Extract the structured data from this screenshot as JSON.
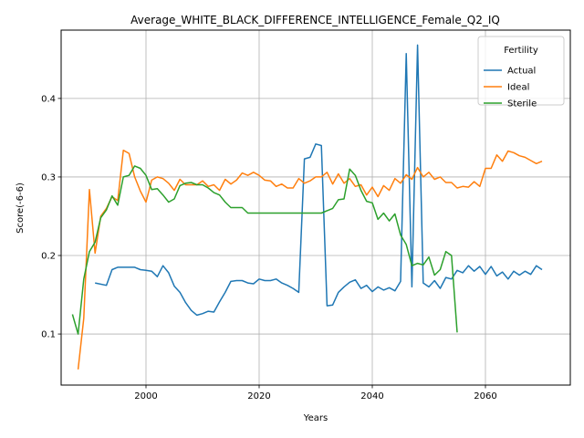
{
  "chart_data": {
    "type": "line",
    "title": "Average_WHITE_BLACK_DIFFERENCE_INTELLIGENCE_Female_Q2_IQ",
    "xlabel": "Years",
    "ylabel": "Score(-6-6)",
    "xlim": [
      1985,
      2075
    ],
    "ylim": [
      0.035,
      0.487
    ],
    "x_ticks": [
      2000,
      2020,
      2040,
      2060
    ],
    "y_ticks": [
      0.1,
      0.2,
      0.3,
      0.4
    ],
    "x_tick_labels": [
      "2000",
      "2020",
      "2040",
      "2060"
    ],
    "y_tick_labels": [
      "0.1",
      "0.2",
      "0.3",
      "0.4"
    ],
    "grid": true,
    "legend": {
      "title": "Fertility",
      "placement": "top-right"
    },
    "series": [
      {
        "name": "Actual",
        "color": "#1f77b4",
        "points": [
          [
            1991,
            0.165
          ],
          [
            1993,
            0.162
          ],
          [
            1994,
            0.182
          ],
          [
            1995,
            0.185
          ],
          [
            1996,
            0.185
          ],
          [
            1997,
            0.185
          ],
          [
            1998,
            0.185
          ],
          [
            1999,
            0.182
          ],
          [
            2000,
            0.181
          ],
          [
            2001,
            0.18
          ],
          [
            2002,
            0.173
          ],
          [
            2003,
            0.187
          ],
          [
            2004,
            0.178
          ],
          [
            2005,
            0.161
          ],
          [
            2006,
            0.153
          ],
          [
            2007,
            0.14
          ],
          [
            2008,
            0.13
          ],
          [
            2009,
            0.124
          ],
          [
            2010,
            0.126
          ],
          [
            2011,
            0.129
          ],
          [
            2012,
            0.128
          ],
          [
            2013,
            0.141
          ],
          [
            2014,
            0.153
          ],
          [
            2015,
            0.167
          ],
          [
            2016,
            0.168
          ],
          [
            2017,
            0.168
          ],
          [
            2018,
            0.165
          ],
          [
            2019,
            0.164
          ],
          [
            2020,
            0.17
          ],
          [
            2021,
            0.168
          ],
          [
            2022,
            0.168
          ],
          [
            2023,
            0.17
          ],
          [
            2024,
            0.165
          ],
          [
            2025,
            0.162
          ],
          [
            2026,
            0.158
          ],
          [
            2027,
            0.153
          ],
          [
            2028,
            0.323
          ],
          [
            2029,
            0.325
          ],
          [
            2030,
            0.342
          ],
          [
            2031,
            0.34
          ],
          [
            2032,
            0.136
          ],
          [
            2033,
            0.137
          ],
          [
            2034,
            0.153
          ],
          [
            2035,
            0.16
          ],
          [
            2036,
            0.166
          ],
          [
            2037,
            0.169
          ],
          [
            2038,
            0.158
          ],
          [
            2039,
            0.162
          ],
          [
            2040,
            0.154
          ],
          [
            2041,
            0.16
          ],
          [
            2042,
            0.156
          ],
          [
            2043,
            0.159
          ],
          [
            2044,
            0.155
          ],
          [
            2045,
            0.167
          ],
          [
            2046,
            0.457
          ],
          [
            2047,
            0.16
          ],
          [
            2048,
            0.468
          ],
          [
            2049,
            0.165
          ],
          [
            2050,
            0.16
          ],
          [
            2051,
            0.168
          ],
          [
            2052,
            0.158
          ],
          [
            2053,
            0.172
          ],
          [
            2054,
            0.17
          ],
          [
            2055,
            0.181
          ],
          [
            2056,
            0.178
          ],
          [
            2057,
            0.187
          ],
          [
            2058,
            0.18
          ],
          [
            2059,
            0.186
          ],
          [
            2060,
            0.176
          ],
          [
            2061,
            0.186
          ],
          [
            2062,
            0.174
          ],
          [
            2063,
            0.179
          ],
          [
            2064,
            0.17
          ],
          [
            2065,
            0.18
          ],
          [
            2066,
            0.175
          ],
          [
            2067,
            0.18
          ],
          [
            2068,
            0.176
          ],
          [
            2069,
            0.187
          ],
          [
            2070,
            0.182
          ]
        ]
      },
      {
        "name": "Ideal",
        "color": "#ff7f0e",
        "points": [
          [
            1988,
            0.055
          ],
          [
            1989,
            0.12
          ],
          [
            1990,
            0.284
          ],
          [
            1991,
            0.203
          ],
          [
            1992,
            0.25
          ],
          [
            1993,
            0.26
          ],
          [
            1994,
            0.275
          ],
          [
            1995,
            0.27
          ],
          [
            1996,
            0.334
          ],
          [
            1997,
            0.33
          ],
          [
            1998,
            0.3
          ],
          [
            1999,
            0.282
          ],
          [
            2000,
            0.268
          ],
          [
            2001,
            0.296
          ],
          [
            2002,
            0.3
          ],
          [
            2003,
            0.298
          ],
          [
            2004,
            0.292
          ],
          [
            2005,
            0.283
          ],
          [
            2006,
            0.297
          ],
          [
            2007,
            0.29
          ],
          [
            2008,
            0.29
          ],
          [
            2009,
            0.29
          ],
          [
            2010,
            0.295
          ],
          [
            2011,
            0.288
          ],
          [
            2012,
            0.29
          ],
          [
            2013,
            0.283
          ],
          [
            2014,
            0.297
          ],
          [
            2015,
            0.291
          ],
          [
            2016,
            0.296
          ],
          [
            2017,
            0.305
          ],
          [
            2018,
            0.302
          ],
          [
            2019,
            0.306
          ],
          [
            2020,
            0.302
          ],
          [
            2021,
            0.296
          ],
          [
            2022,
            0.295
          ],
          [
            2023,
            0.288
          ],
          [
            2024,
            0.291
          ],
          [
            2025,
            0.286
          ],
          [
            2026,
            0.286
          ],
          [
            2027,
            0.298
          ],
          [
            2028,
            0.292
          ],
          [
            2029,
            0.295
          ],
          [
            2030,
            0.3
          ],
          [
            2031,
            0.3
          ],
          [
            2032,
            0.306
          ],
          [
            2033,
            0.291
          ],
          [
            2034,
            0.304
          ],
          [
            2035,
            0.292
          ],
          [
            2036,
            0.298
          ],
          [
            2037,
            0.288
          ],
          [
            2038,
            0.29
          ],
          [
            2039,
            0.277
          ],
          [
            2040,
            0.287
          ],
          [
            2041,
            0.275
          ],
          [
            2042,
            0.289
          ],
          [
            2043,
            0.283
          ],
          [
            2044,
            0.298
          ],
          [
            2045,
            0.292
          ],
          [
            2046,
            0.303
          ],
          [
            2047,
            0.297
          ],
          [
            2048,
            0.312
          ],
          [
            2049,
            0.3
          ],
          [
            2050,
            0.306
          ],
          [
            2051,
            0.297
          ],
          [
            2052,
            0.3
          ],
          [
            2053,
            0.293
          ],
          [
            2054,
            0.293
          ],
          [
            2055,
            0.286
          ],
          [
            2056,
            0.288
          ],
          [
            2057,
            0.287
          ],
          [
            2058,
            0.294
          ],
          [
            2059,
            0.288
          ],
          [
            2060,
            0.311
          ],
          [
            2061,
            0.311
          ],
          [
            2062,
            0.328
          ],
          [
            2063,
            0.32
          ],
          [
            2064,
            0.333
          ],
          [
            2065,
            0.331
          ],
          [
            2066,
            0.327
          ],
          [
            2067,
            0.325
          ],
          [
            2068,
            0.321
          ],
          [
            2069,
            0.317
          ],
          [
            2070,
            0.32
          ]
        ]
      },
      {
        "name": "Sterile",
        "color": "#2ca02c",
        "points": [
          [
            1987,
            0.125
          ],
          [
            1988,
            0.1
          ],
          [
            1989,
            0.17
          ],
          [
            1990,
            0.205
          ],
          [
            1991,
            0.217
          ],
          [
            1992,
            0.248
          ],
          [
            1993,
            0.258
          ],
          [
            1994,
            0.276
          ],
          [
            1995,
            0.264
          ],
          [
            1996,
            0.3
          ],
          [
            1997,
            0.302
          ],
          [
            1998,
            0.314
          ],
          [
            1999,
            0.311
          ],
          [
            2000,
            0.302
          ],
          [
            2001,
            0.284
          ],
          [
            2002,
            0.285
          ],
          [
            2003,
            0.277
          ],
          [
            2004,
            0.268
          ],
          [
            2005,
            0.272
          ],
          [
            2006,
            0.289
          ],
          [
            2007,
            0.292
          ],
          [
            2008,
            0.293
          ],
          [
            2009,
            0.29
          ],
          [
            2010,
            0.29
          ],
          [
            2011,
            0.286
          ],
          [
            2012,
            0.28
          ],
          [
            2013,
            0.277
          ],
          [
            2014,
            0.268
          ],
          [
            2015,
            0.261
          ],
          [
            2016,
            0.261
          ],
          [
            2017,
            0.261
          ],
          [
            2018,
            0.254
          ],
          [
            2019,
            0.254
          ],
          [
            2020,
            0.254
          ],
          [
            2021,
            0.254
          ],
          [
            2022,
            0.254
          ],
          [
            2023,
            0.254
          ],
          [
            2024,
            0.254
          ],
          [
            2025,
            0.254
          ],
          [
            2026,
            0.254
          ],
          [
            2027,
            0.254
          ],
          [
            2028,
            0.254
          ],
          [
            2029,
            0.254
          ],
          [
            2030,
            0.254
          ],
          [
            2031,
            0.254
          ],
          [
            2032,
            0.257
          ],
          [
            2033,
            0.26
          ],
          [
            2034,
            0.271
          ],
          [
            2035,
            0.272
          ],
          [
            2036,
            0.31
          ],
          [
            2037,
            0.302
          ],
          [
            2038,
            0.283
          ],
          [
            2039,
            0.269
          ],
          [
            2040,
            0.267
          ],
          [
            2041,
            0.246
          ],
          [
            2042,
            0.254
          ],
          [
            2043,
            0.244
          ],
          [
            2044,
            0.253
          ],
          [
            2045,
            0.226
          ],
          [
            2046,
            0.214
          ],
          [
            2047,
            0.187
          ],
          [
            2048,
            0.19
          ],
          [
            2049,
            0.188
          ],
          [
            2050,
            0.198
          ],
          [
            2051,
            0.175
          ],
          [
            2052,
            0.182
          ],
          [
            2053,
            0.205
          ],
          [
            2054,
            0.2
          ],
          [
            2055,
            0.102
          ]
        ]
      }
    ]
  }
}
